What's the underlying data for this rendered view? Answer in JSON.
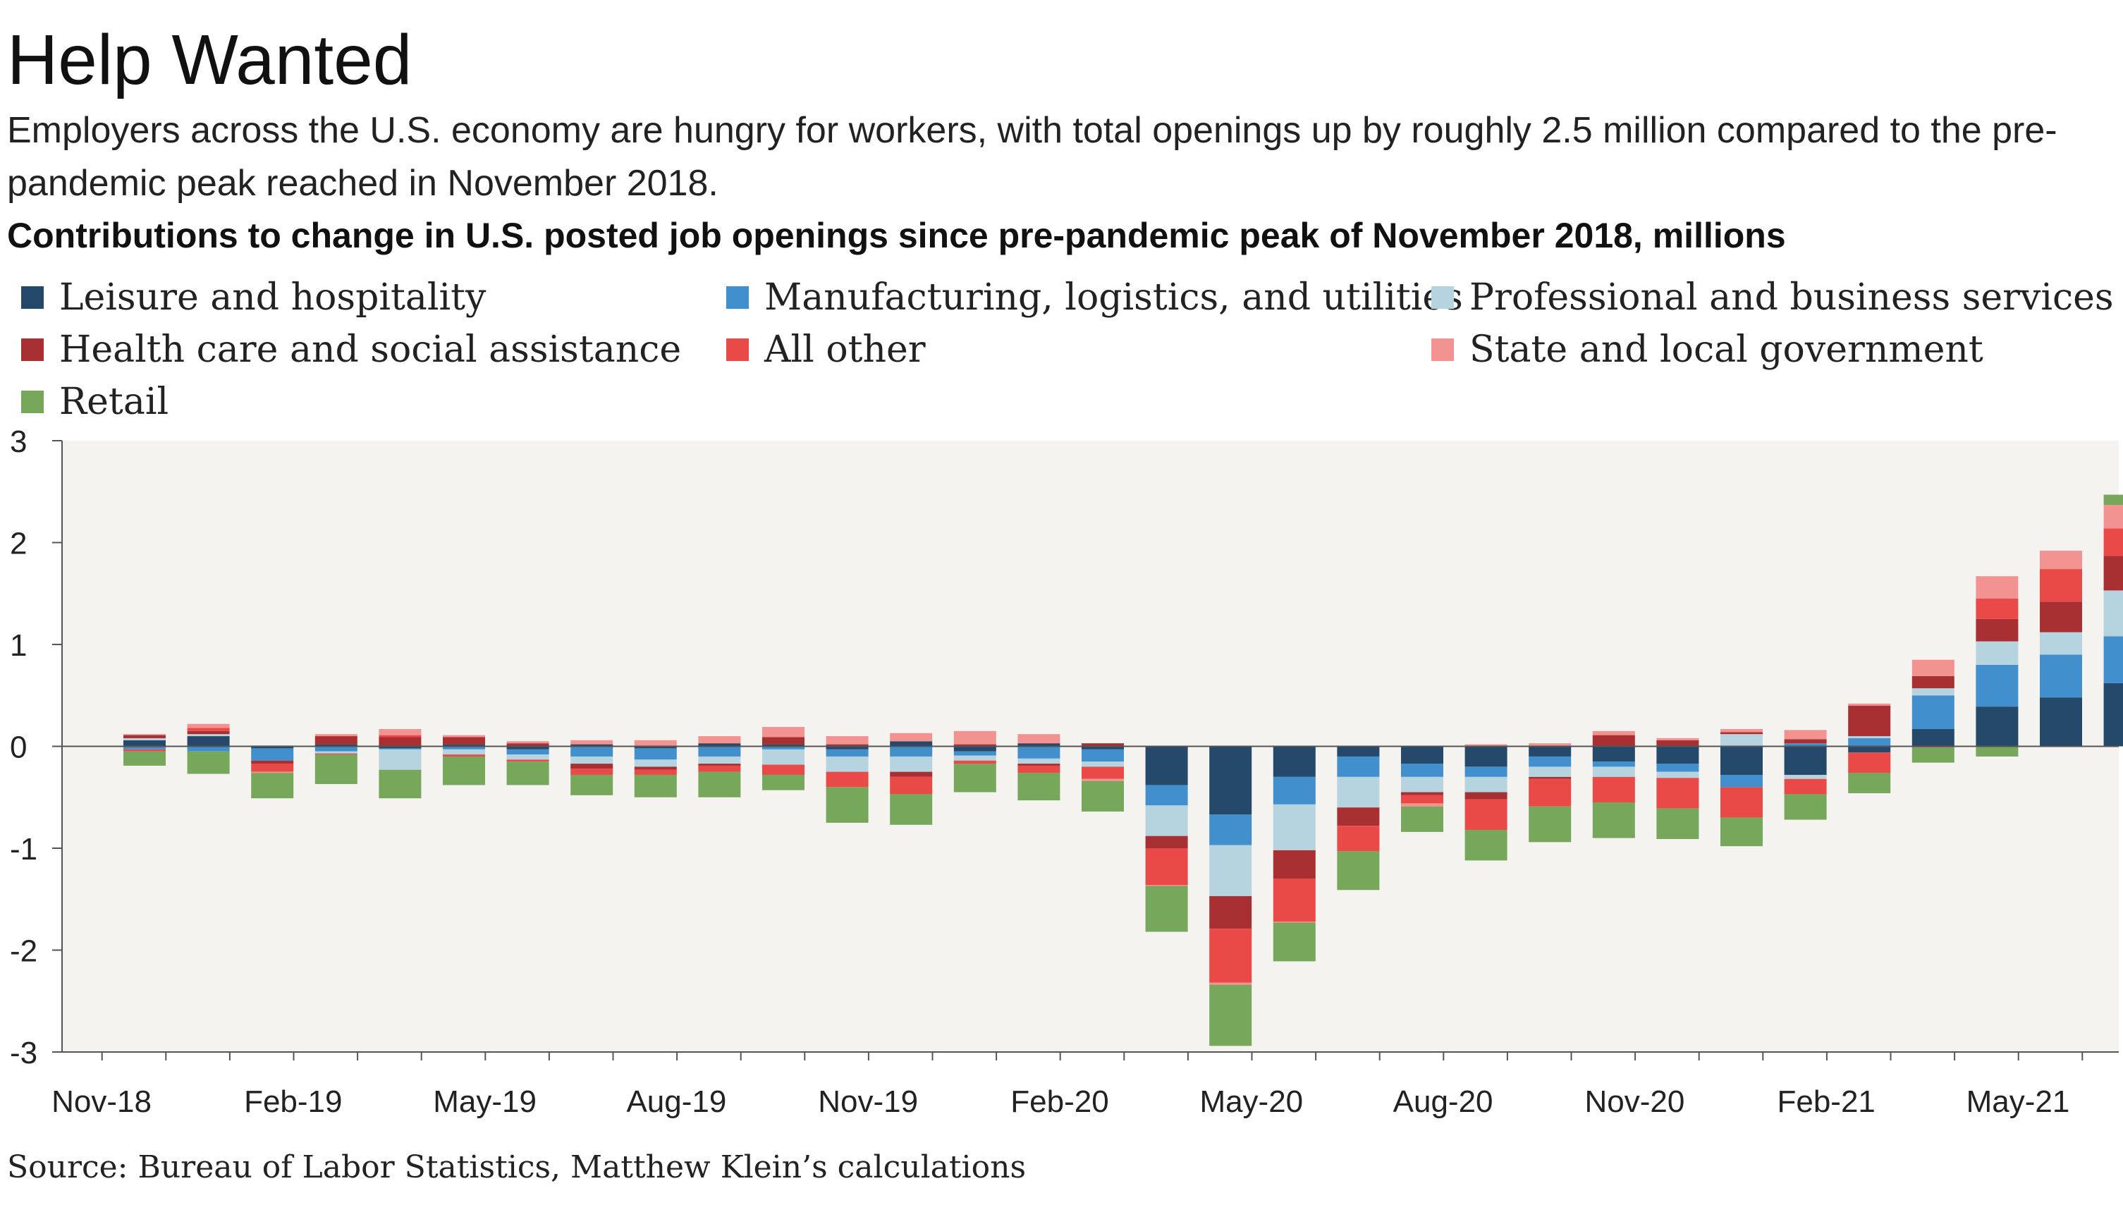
{
  "header": {
    "title": "Help Wanted",
    "subtitle": "Employers across the U.S. economy are hungry for workers, with total openings up by roughly 2.5 million compared to the pre-pandemic peak reached in November 2018."
  },
  "footer": {
    "source": "Source: Bureau of Labor Statistics, Matthew Klein’s calculations"
  },
  "chart_data": {
    "type": "bar",
    "stacked": true,
    "title": "Contributions to change in U.S. posted job openings since pre-pandemic peak of November 2018, millions",
    "ylim": [
      -3,
      3
    ],
    "yticks": [
      "3",
      "2",
      "1",
      "0",
      "-1",
      "-2",
      "-3"
    ],
    "xtick_labels": [
      "Nov-18",
      "Feb-19",
      "May-19",
      "Aug-19",
      "Nov-19",
      "Feb-20",
      "May-20",
      "Aug-20",
      "Nov-20",
      "Feb-21",
      "May-21"
    ],
    "grid": false,
    "legend_position": "top",
    "background": "#f5f3ef",
    "categories": [
      "Nov-18",
      "Dec-18",
      "Jan-19",
      "Feb-19",
      "Mar-19",
      "Apr-19",
      "May-19",
      "Jun-19",
      "Jul-19",
      "Aug-19",
      "Sep-19",
      "Oct-19",
      "Nov-19",
      "Dec-19",
      "Jan-20",
      "Feb-20",
      "Mar-20",
      "Apr-20",
      "May-20",
      "Jun-20",
      "Jul-20",
      "Aug-20",
      "Sep-20",
      "Oct-20",
      "Nov-20",
      "Dec-20",
      "Jan-21",
      "Feb-21",
      "Mar-21",
      "Apr-21",
      "May-21",
      "Jun-21"
    ],
    "series": [
      {
        "name": "Leisure and hospitality",
        "color": "#24496b",
        "values": [
          0.06,
          0.1,
          -0.02,
          0.02,
          -0.02,
          0.02,
          -0.03,
          0.02,
          -0.02,
          0.03,
          0.02,
          -0.03,
          0.05,
          -0.05,
          0.03,
          -0.03,
          -0.38,
          -0.67,
          -0.3,
          -0.1,
          -0.17,
          -0.2,
          -0.1,
          -0.15,
          -0.17,
          -0.28,
          -0.28,
          -0.06,
          0.17,
          0.39,
          0.48,
          0.62
        ]
      },
      {
        "name": "Manufacturing, logistics, and utilities",
        "color": "#418fcd",
        "values": [
          -0.03,
          -0.05,
          -0.12,
          -0.05,
          -0.01,
          -0.03,
          -0.05,
          -0.1,
          -0.11,
          -0.1,
          -0.03,
          -0.07,
          -0.1,
          -0.04,
          -0.12,
          -0.12,
          -0.2,
          -0.3,
          -0.27,
          -0.2,
          -0.13,
          -0.1,
          -0.1,
          -0.05,
          -0.08,
          -0.12,
          0.03,
          0.08,
          0.33,
          0.41,
          0.42,
          0.46
        ]
      },
      {
        "name": "Professional and business services",
        "color": "#b6d4e0",
        "values": [
          0.02,
          0.02,
          0.01,
          -0.02,
          -0.2,
          -0.05,
          -0.05,
          -0.07,
          -0.07,
          -0.07,
          -0.15,
          -0.15,
          -0.15,
          -0.05,
          -0.05,
          -0.05,
          -0.3,
          -0.5,
          -0.45,
          -0.3,
          -0.15,
          -0.15,
          -0.1,
          -0.1,
          -0.06,
          0.12,
          -0.04,
          0.02,
          0.07,
          0.23,
          0.22,
          0.45
        ]
      },
      {
        "name": "Health care and social assistance",
        "color": "#a93032",
        "values": [
          0.03,
          0.03,
          -0.03,
          0.08,
          0.09,
          0.07,
          0.03,
          -0.05,
          -0.03,
          -0.02,
          0.07,
          0.02,
          -0.05,
          0.02,
          -0.02,
          0.03,
          -0.12,
          -0.32,
          -0.28,
          -0.18,
          -0.03,
          -0.07,
          -0.02,
          0.11,
          0.06,
          0.02,
          0.04,
          0.3,
          0.12,
          0.22,
          0.3,
          0.34
        ]
      },
      {
        "name": "All other",
        "color": "#e94a48",
        "values": [
          -0.02,
          0.03,
          -0.08,
          -0.01,
          0.02,
          -0.02,
          -0.02,
          -0.06,
          -0.05,
          -0.06,
          -0.1,
          -0.15,
          -0.17,
          -0.03,
          -0.07,
          -0.12,
          -0.36,
          -0.53,
          -0.42,
          -0.25,
          -0.08,
          -0.3,
          -0.27,
          -0.25,
          -0.3,
          -0.3,
          -0.15,
          -0.2,
          -0.01,
          0.2,
          0.32,
          0.27
        ]
      },
      {
        "name": "State and local government",
        "color": "#f29291",
        "values": [
          0.01,
          0.04,
          -0.01,
          0.02,
          0.06,
          0.02,
          0.02,
          0.04,
          0.06,
          0.07,
          0.1,
          0.08,
          0.08,
          0.13,
          0.09,
          -0.02,
          -0.01,
          -0.02,
          -0.01,
          0.0,
          -0.03,
          0.02,
          0.03,
          0.04,
          0.02,
          0.03,
          0.09,
          0.02,
          0.16,
          0.22,
          0.18,
          0.23
        ]
      },
      {
        "name": "Retail",
        "color": "#76a75a",
        "values": [
          -0.14,
          -0.22,
          -0.25,
          -0.29,
          -0.28,
          -0.28,
          -0.23,
          -0.2,
          -0.22,
          -0.25,
          -0.15,
          -0.35,
          -0.3,
          -0.28,
          -0.27,
          -0.3,
          -0.45,
          -0.6,
          -0.38,
          -0.38,
          -0.25,
          -0.3,
          -0.35,
          -0.35,
          -0.3,
          -0.28,
          -0.25,
          -0.2,
          -0.15,
          -0.1,
          0.0,
          0.1
        ]
      }
    ]
  }
}
